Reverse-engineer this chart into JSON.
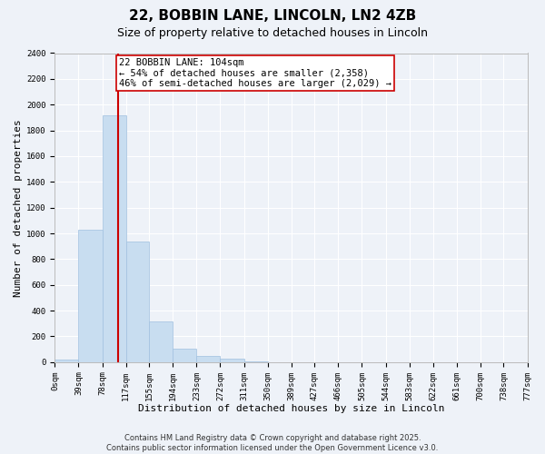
{
  "title": "22, BOBBIN LANE, LINCOLN, LN2 4ZB",
  "subtitle": "Size of property relative to detached houses in Lincoln",
  "xlabel": "Distribution of detached houses by size in Lincoln",
  "ylabel": "Number of detached properties",
  "bar_color": "#c8ddf0",
  "bar_edge_color": "#a0c0e0",
  "background_color": "#eef2f8",
  "grid_color": "#ffffff",
  "bin_edges": [
    0,
    39,
    78,
    117,
    155,
    194,
    233,
    272,
    311,
    350,
    389,
    427,
    466,
    505,
    544,
    583,
    622,
    661,
    700,
    738,
    777
  ],
  "bin_labels": [
    "0sqm",
    "39sqm",
    "78sqm",
    "117sqm",
    "155sqm",
    "194sqm",
    "233sqm",
    "272sqm",
    "311sqm",
    "350sqm",
    "389sqm",
    "427sqm",
    "466sqm",
    "505sqm",
    "544sqm",
    "583sqm",
    "622sqm",
    "661sqm",
    "700sqm",
    "738sqm",
    "777sqm"
  ],
  "bar_heights": [
    20,
    1030,
    1920,
    940,
    315,
    105,
    50,
    25,
    5,
    0,
    0,
    0,
    0,
    0,
    0,
    0,
    0,
    0,
    0,
    0
  ],
  "ylim": [
    0,
    2400
  ],
  "yticks": [
    0,
    200,
    400,
    600,
    800,
    1000,
    1200,
    1400,
    1600,
    1800,
    2000,
    2200,
    2400
  ],
  "property_label": "22 BOBBIN LANE: 104sqm",
  "annotation_line1": "← 54% of detached houses are smaller (2,358)",
  "annotation_line2": "46% of semi-detached houses are larger (2,029) →",
  "vline_x": 104,
  "vline_color": "#cc0000",
  "annotation_box_color": "#ffffff",
  "annotation_box_edge": "#cc0000",
  "footer_line1": "Contains HM Land Registry data © Crown copyright and database right 2025.",
  "footer_line2": "Contains public sector information licensed under the Open Government Licence v3.0.",
  "title_fontsize": 11,
  "subtitle_fontsize": 9,
  "axis_label_fontsize": 8,
  "tick_fontsize": 6.5,
  "annotation_fontsize": 7.5,
  "footer_fontsize": 6
}
